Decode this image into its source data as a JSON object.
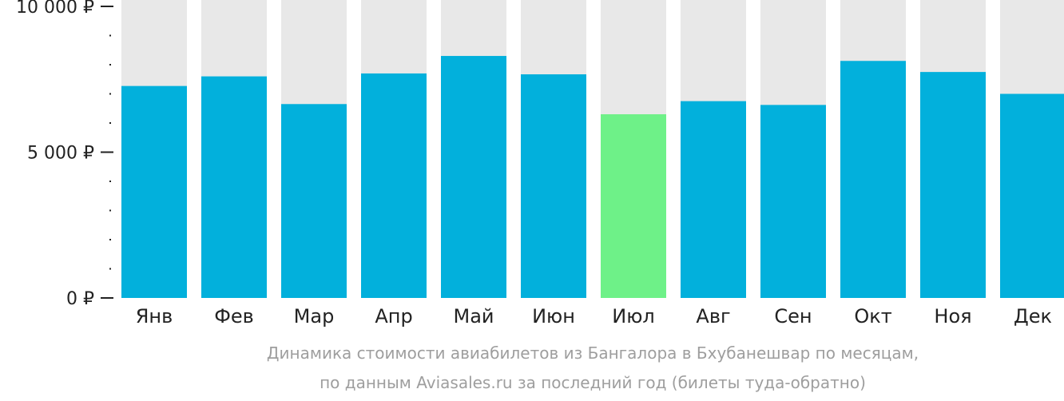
{
  "chart_data": {
    "type": "bar",
    "categories": [
      "Янв",
      "Фев",
      "Мар",
      "Апр",
      "Май",
      "Июн",
      "Июл",
      "Авг",
      "Сен",
      "Окт",
      "Ноя",
      "Дек"
    ],
    "values": [
      7270,
      7600,
      6650,
      7700,
      8300,
      7670,
      6300,
      6750,
      6620,
      8130,
      7750,
      7000
    ],
    "highlight_index": 6,
    "ylim": [
      0,
      10000
    ],
    "y_ticks": [
      {
        "value": 0,
        "label": "0 ₽"
      },
      {
        "value": 5000,
        "label": "5 000 ₽"
      },
      {
        "value": 10000,
        "label": "10 000 ₽"
      }
    ],
    "y_minor_step": 1000,
    "colors": {
      "bar": "#02b0dc",
      "highlight": "#6ef188",
      "background_bar": "#e8e8e8",
      "axis": "#222222"
    }
  },
  "caption": {
    "line1": "Динамика стоимости авиабилетов из Бангалора в Бхубанешвар по месяцам,",
    "line2": "по данным Aviasales.ru за последний год (билеты туда-обратно)"
  }
}
